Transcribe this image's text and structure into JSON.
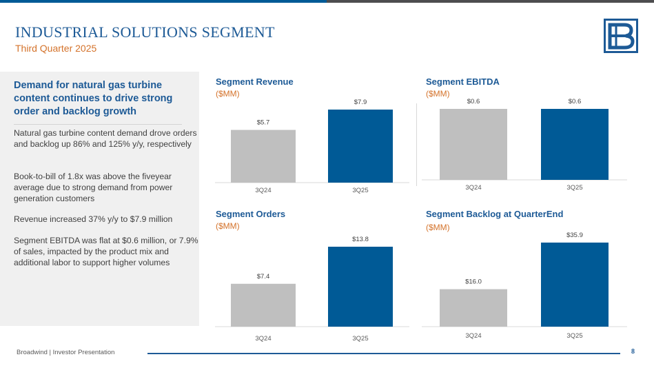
{
  "header": {
    "title": "INDUSTRIAL SOLUTIONS SEGMENT",
    "subtitle": "Third Quarter 2025"
  },
  "sidebar": {
    "headline": "Demand for natural gas turbine content continues to drive strong order and backlog growth",
    "paragraphs": [
      "Natural gas turbine content demand drove orders and backlog up 86% and 125% y/y, respectively",
      "Book-to-bill of 1.8x was above the fiveyear average due to strong demand from power generation customers",
      "Revenue increased 37% y/y to $7.9 million",
      "Segment EBITDA was flat at $0.6 million, or 7.9% of sales, impacted by the product mix and additional labor to support higher volumes"
    ]
  },
  "footer": {
    "text": "Broadwind  | Investor Presentation",
    "page_number": "8"
  },
  "colors": {
    "accent_blue": "#005a96",
    "bar_grey": "#bfbfbf",
    "orange": "#d4722a"
  },
  "chart_data": [
    {
      "type": "bar",
      "title": "Segment Revenue",
      "unit": "($MM)",
      "categories": [
        "3Q24",
        "3Q25"
      ],
      "values": [
        5.7,
        7.9
      ],
      "labels": [
        "$5.7",
        "$7.9"
      ],
      "ylim": [
        0,
        8.4
      ]
    },
    {
      "type": "bar",
      "title": "Segment EBITDA",
      "unit": "($MM)",
      "categories": [
        "3Q24",
        "3Q25"
      ],
      "values": [
        0.6,
        0.6
      ],
      "labels": [
        "$0.6",
        "$0.6"
      ],
      "ylim": [
        0,
        0.68
      ]
    },
    {
      "type": "bar",
      "title": "Segment Orders",
      "unit": "($MM)",
      "categories": [
        "3Q24",
        "3Q25"
      ],
      "values": [
        7.4,
        13.8
      ],
      "labels": [
        "$7.4",
        "$13.8"
      ],
      "ylim": [
        0,
        14.6
      ]
    },
    {
      "type": "bar",
      "title": "Segment Backlog at QuarterEnd",
      "unit": "($MM)",
      "categories": [
        "3Q24",
        "3Q25"
      ],
      "values": [
        16.0,
        35.9
      ],
      "labels": [
        "$16.0",
        "$35.9"
      ],
      "ylim": [
        0,
        37.6
      ]
    }
  ]
}
